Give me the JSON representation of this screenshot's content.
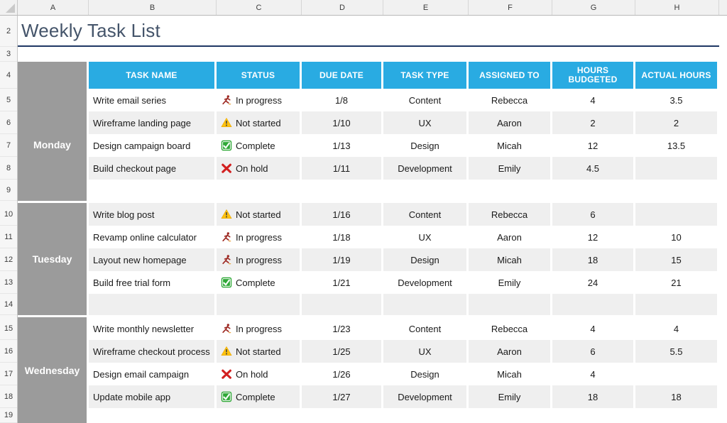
{
  "sheet": {
    "title": "Weekly Task List"
  },
  "spreadsheet": {
    "column_letters": [
      "A",
      "B",
      "C",
      "D",
      "E",
      "F",
      "G",
      "H"
    ],
    "row_numbers": [
      "2",
      "3",
      "4",
      "5",
      "6",
      "7",
      "8",
      "9",
      "10",
      "11",
      "12",
      "13",
      "14",
      "15",
      "16",
      "17",
      "18",
      "19"
    ]
  },
  "table": {
    "headers": [
      "TASK NAME",
      "STATUS",
      "DUE DATE",
      "TASK TYPE",
      "ASSIGNED TO",
      "HOURS BUDGETED",
      "ACTUAL HOURS"
    ],
    "status_icons": {
      "in-progress": "runner-icon",
      "not-started": "warning-triangle-icon",
      "complete": "green-check-icon",
      "on-hold": "red-x-icon"
    },
    "groups": [
      {
        "day": "Monday",
        "spacer_shaded": false,
        "rows": [
          {
            "task": "Write email series",
            "status": "in-progress",
            "status_label": "In progress",
            "due": "1/8",
            "type": "Content",
            "assigned": "Rebecca",
            "budgeted": "4",
            "actual": "3.5",
            "shaded": false
          },
          {
            "task": "Wireframe landing page",
            "status": "not-started",
            "status_label": "Not started",
            "due": "1/10",
            "type": "UX",
            "assigned": "Aaron",
            "budgeted": "2",
            "actual": "2",
            "shaded": true
          },
          {
            "task": "Design campaign board",
            "status": "complete",
            "status_label": "Complete",
            "due": "1/13",
            "type": "Design",
            "assigned": "Micah",
            "budgeted": "12",
            "actual": "13.5",
            "shaded": false
          },
          {
            "task": "Build checkout page",
            "status": "on-hold",
            "status_label": "On hold",
            "due": "1/11",
            "type": "Development",
            "assigned": "Emily",
            "budgeted": "4.5",
            "actual": "",
            "shaded": true
          }
        ]
      },
      {
        "day": "Tuesday",
        "spacer_shaded": true,
        "rows": [
          {
            "task": "Write blog post",
            "status": "not-started",
            "status_label": "Not started",
            "due": "1/16",
            "type": "Content",
            "assigned": "Rebecca",
            "budgeted": "6",
            "actual": "",
            "shaded": true
          },
          {
            "task": "Revamp online calculator",
            "status": "in-progress",
            "status_label": "In progress",
            "due": "1/18",
            "type": "UX",
            "assigned": "Aaron",
            "budgeted": "12",
            "actual": "10",
            "shaded": false
          },
          {
            "task": "Layout new homepage",
            "status": "in-progress",
            "status_label": "In progress",
            "due": "1/19",
            "type": "Design",
            "assigned": "Micah",
            "budgeted": "18",
            "actual": "15",
            "shaded": true
          },
          {
            "task": "Build free trial form",
            "status": "complete",
            "status_label": "Complete",
            "due": "1/21",
            "type": "Development",
            "assigned": "Emily",
            "budgeted": "24",
            "actual": "21",
            "shaded": false
          }
        ]
      },
      {
        "day": "Wednesday",
        "spacer_shaded": false,
        "rows": [
          {
            "task": "Write monthly newsletter",
            "status": "in-progress",
            "status_label": "In progress",
            "due": "1/23",
            "type": "Content",
            "assigned": "Rebecca",
            "budgeted": "4",
            "actual": "4",
            "shaded": false
          },
          {
            "task": "Wireframe checkout process",
            "status": "not-started",
            "status_label": "Not started",
            "due": "1/25",
            "type": "UX",
            "assigned": "Aaron",
            "budgeted": "6",
            "actual": "5.5",
            "shaded": true
          },
          {
            "task": "Design email campaign",
            "status": "on-hold",
            "status_label": "On hold",
            "due": "1/26",
            "type": "Design",
            "assigned": "Micah",
            "budgeted": "4",
            "actual": "",
            "shaded": false
          },
          {
            "task": "Update mobile app",
            "status": "complete",
            "status_label": "Complete",
            "due": "1/27",
            "type": "Development",
            "assigned": "Emily",
            "budgeted": "18",
            "actual": "18",
            "shaded": true
          }
        ]
      }
    ]
  },
  "colors": {
    "header_blue": "#29abe2",
    "day_gray": "#9b9b9b",
    "band_gray": "#efefef",
    "title_text": "#44546a",
    "title_underline": "#1f3864",
    "warning_yellow": "#ffc20e",
    "complete_green": "#2ea836",
    "onhold_red": "#d21f1f",
    "runner_red": "#9e2b25"
  }
}
